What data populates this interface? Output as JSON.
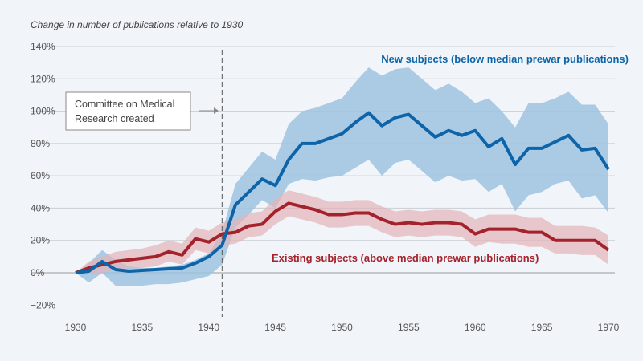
{
  "chart_data": {
    "type": "line",
    "subtitle": "Change in number of publications relative to 1930",
    "xlim": [
      1930,
      1970
    ],
    "ylim": [
      -20,
      140
    ],
    "x_ticks": [
      "1930",
      "1935",
      "1940",
      "1945",
      "1950",
      "1955",
      "1960",
      "1965",
      "1970"
    ],
    "y_ticks": [
      "140%",
      "120%",
      "100%",
      "80%",
      "60%",
      "40%",
      "20%",
      "0%",
      "−20%"
    ],
    "y_tick_values": [
      140,
      120,
      100,
      80,
      60,
      40,
      20,
      0,
      -20
    ],
    "grid": "horizontal",
    "x": [
      1930,
      1931,
      1932,
      1933,
      1934,
      1935,
      1936,
      1937,
      1938,
      1939,
      1940,
      1941,
      1942,
      1943,
      1944,
      1945,
      1946,
      1947,
      1948,
      1949,
      1950,
      1951,
      1952,
      1953,
      1954,
      1955,
      1956,
      1957,
      1958,
      1959,
      1960,
      1961,
      1962,
      1963,
      1964,
      1965,
      1966,
      1967,
      1968,
      1969,
      1970
    ],
    "series": [
      {
        "name": "New subjects (below median prewar publications)",
        "color": "#0e64a8",
        "band_color": "#9fc3e2",
        "values": [
          0,
          1,
          7,
          2,
          1,
          1.5,
          2,
          2.5,
          3,
          6,
          10,
          17,
          42,
          50,
          58,
          54,
          70,
          80,
          80,
          83,
          86,
          93,
          99,
          91,
          96,
          98,
          91,
          84,
          88,
          85,
          88,
          78,
          83,
          67,
          77,
          77,
          81,
          85,
          76,
          77,
          64
        ],
        "upper": [
          0,
          6,
          14,
          8,
          4,
          3,
          3,
          4,
          5,
          8,
          12,
          25,
          55,
          65,
          75,
          70,
          92,
          100,
          102,
          105,
          108,
          118,
          127,
          122,
          126,
          127,
          120,
          113,
          117,
          112,
          105,
          108,
          100,
          90,
          105,
          105,
          108,
          112,
          104,
          104,
          92
        ],
        "lower": [
          0,
          -6,
          0,
          -8,
          -8,
          -8,
          -7,
          -7,
          -6,
          -4,
          -2,
          5,
          28,
          36,
          45,
          40,
          55,
          58,
          57,
          59,
          60,
          65,
          70,
          60,
          68,
          70,
          63,
          56,
          60,
          57,
          58,
          50,
          55,
          38,
          48,
          50,
          55,
          57,
          46,
          48,
          37
        ]
      },
      {
        "name": "Existing subjects (above median prewar publications)",
        "color": "#a3222b",
        "band_color": "#e2b3b8",
        "values": [
          0,
          3,
          5,
          7,
          8,
          9,
          10,
          13,
          11,
          21,
          19,
          24,
          25,
          29,
          30,
          38,
          43,
          41,
          39,
          36,
          36,
          37,
          37,
          33,
          30,
          31,
          30,
          31,
          31,
          30,
          24,
          27,
          27,
          27,
          25,
          25,
          20,
          20,
          20,
          20,
          14
        ],
        "upper": [
          0,
          7,
          10,
          13,
          14,
          15,
          17,
          20,
          18,
          28,
          26,
          31,
          33,
          37,
          38,
          46,
          51,
          49,
          47,
          44,
          44,
          45,
          45,
          41,
          38,
          39,
          38,
          39,
          39,
          38,
          33,
          36,
          36,
          36,
          34,
          34,
          29,
          29,
          29,
          28,
          23
        ],
        "lower": [
          0,
          -1,
          0,
          2,
          3,
          3,
          4,
          7,
          5,
          14,
          12,
          17,
          18,
          22,
          23,
          30,
          35,
          33,
          31,
          28,
          28,
          29,
          29,
          25,
          22,
          23,
          22,
          23,
          23,
          22,
          16,
          19,
          18,
          18,
          16,
          16,
          12,
          12,
          11,
          11,
          5
        ]
      }
    ],
    "annotations": [
      {
        "text_lines": [
          "Committee on Medical",
          "Research created"
        ],
        "year": 1941
      }
    ]
  }
}
